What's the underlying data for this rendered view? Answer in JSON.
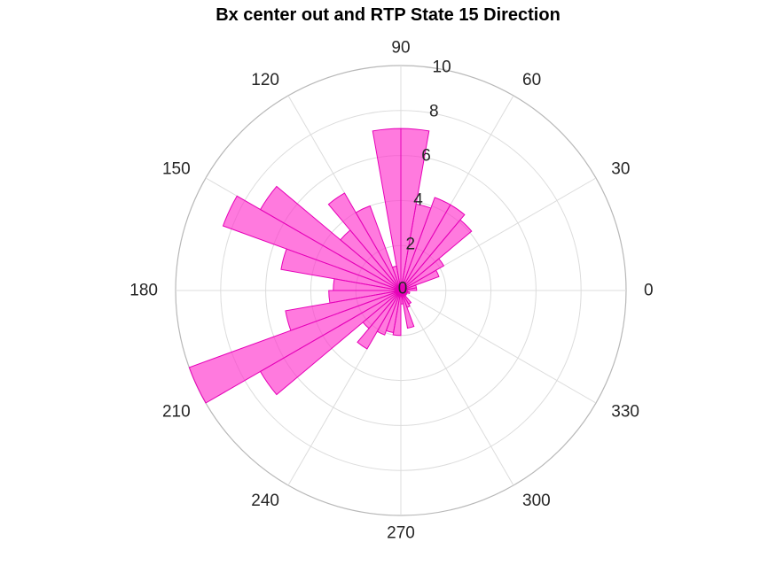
{
  "chart_data": {
    "type": "polar-histogram",
    "title": "Bx  center out and RTP State 15 Direction",
    "theta_ticks": [
      "0",
      "30",
      "60",
      "90",
      "120",
      "150",
      "180",
      "210",
      "240",
      "270",
      "300",
      "330"
    ],
    "r_ticks": [
      "0",
      "2",
      "4",
      "6",
      "8",
      "10"
    ],
    "rlim": [
      0,
      10
    ],
    "bin_width_deg": 10,
    "bins": [
      {
        "start": 0,
        "end": 10,
        "value": 0.7
      },
      {
        "start": 10,
        "end": 20,
        "value": 0.7
      },
      {
        "start": 20,
        "end": 30,
        "value": 1.8
      },
      {
        "start": 30,
        "end": 40,
        "value": 2.2
      },
      {
        "start": 40,
        "end": 50,
        "value": 4.1
      },
      {
        "start": 50,
        "end": 60,
        "value": 4.4
      },
      {
        "start": 60,
        "end": 70,
        "value": 4.4
      },
      {
        "start": 70,
        "end": 80,
        "value": 3.9
      },
      {
        "start": 80,
        "end": 90,
        "value": 7.2
      },
      {
        "start": 90,
        "end": 100,
        "value": 7.2
      },
      {
        "start": 100,
        "end": 110,
        "value": 1.1
      },
      {
        "start": 110,
        "end": 120,
        "value": 4.0
      },
      {
        "start": 120,
        "end": 130,
        "value": 5.0
      },
      {
        "start": 130,
        "end": 140,
        "value": 3.5
      },
      {
        "start": 140,
        "end": 150,
        "value": 7.2
      },
      {
        "start": 150,
        "end": 160,
        "value": 8.4
      },
      {
        "start": 160,
        "end": 170,
        "value": 5.4
      },
      {
        "start": 170,
        "end": 180,
        "value": 3.0
      },
      {
        "start": 180,
        "end": 190,
        "value": 3.2
      },
      {
        "start": 190,
        "end": 200,
        "value": 5.2
      },
      {
        "start": 200,
        "end": 210,
        "value": 10.0
      },
      {
        "start": 210,
        "end": 220,
        "value": 7.2
      },
      {
        "start": 220,
        "end": 230,
        "value": 2.2
      },
      {
        "start": 230,
        "end": 240,
        "value": 3.0
      },
      {
        "start": 240,
        "end": 250,
        "value": 2.1
      },
      {
        "start": 250,
        "end": 260,
        "value": 1.9
      },
      {
        "start": 260,
        "end": 270,
        "value": 2.0
      },
      {
        "start": 270,
        "end": 280,
        "value": 0.6
      },
      {
        "start": 280,
        "end": 290,
        "value": 1.7
      },
      {
        "start": 290,
        "end": 300,
        "value": 0.8
      },
      {
        "start": 300,
        "end": 310,
        "value": 0.7
      },
      {
        "start": 310,
        "end": 320,
        "value": 0.3
      },
      {
        "start": 320,
        "end": 330,
        "value": 0.3
      },
      {
        "start": 330,
        "end": 340,
        "value": 0.3
      },
      {
        "start": 340,
        "end": 350,
        "value": 0.4
      },
      {
        "start": 350,
        "end": 360,
        "value": 0.3
      }
    ],
    "grid": true,
    "colors": {
      "fill": "#ff33cc",
      "fill_opacity": 0.65,
      "edge": "#e600b8",
      "grid": "#dcdcdc",
      "outer_ring": "#b8b8b8",
      "text": "#262626"
    }
  }
}
